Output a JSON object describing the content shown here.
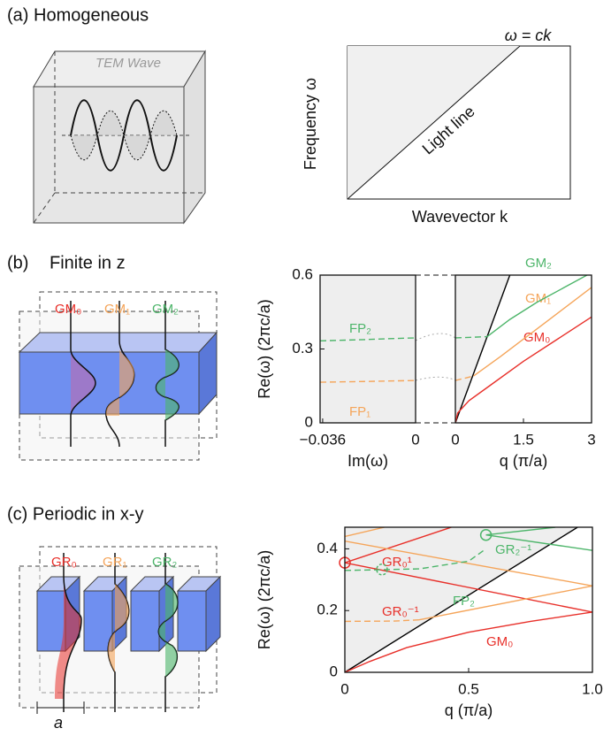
{
  "panels": [
    {
      "title": "(a) Homogeneous",
      "labels": [
        "TEM Wave"
      ]
    },
    {
      "title": "(b)",
      "subtitle": "Finite in z",
      "labels": [
        "GM₀",
        "GM₁",
        "GM₂"
      ]
    },
    {
      "title": "(c) Periodic in x-y",
      "labels": [
        "GR₀",
        "GR₁",
        "GR₂",
        "a"
      ]
    }
  ],
  "chart_data": [
    {
      "type": "line",
      "xlabel": "Wavevector  k",
      "ylabel": "Frequency ω",
      "annotations": [
        "ω = ck",
        "Light line"
      ]
    },
    {
      "type": "line",
      "ylabel": "Re(ω) (2πc/a)",
      "xlabel": "Im(ω)",
      "xlim": [
        -0.037,
        0
      ],
      "xticks": [
        {
          "value": -0.036,
          "label": "−0.036"
        },
        0
      ],
      "ylim": [
        0,
        0.6
      ],
      "yticks": [
        0,
        0.3,
        0.6
      ],
      "series": [
        {
          "name": "FP₂",
          "color": "#4db56a",
          "dashed": true,
          "x": [
            -0.037,
            -0.02,
            -0.01,
            0
          ],
          "values": [
            0.333,
            0.338,
            0.342,
            0.345
          ]
        },
        {
          "name": "FP₁",
          "color": "#f5a55a",
          "dashed": true,
          "x": [
            -0.037,
            -0.02,
            0
          ],
          "values": [
            0.165,
            0.168,
            0.172
          ]
        }
      ]
    },
    {
      "type": "line",
      "xlabel": "q (π/a)",
      "xlim": [
        0,
        3
      ],
      "xticks": [
        0,
        1.5,
        3
      ],
      "ylim": [
        0,
        0.6
      ],
      "series": [
        {
          "color": "#000000",
          "x": [
            0,
            1.2
          ],
          "values": [
            0,
            0.6
          ]
        },
        {
          "name": "GM₀",
          "color": "#e8302a",
          "x": [
            0,
            0.05,
            0.3,
            0.75,
            1.5,
            2.25,
            3
          ],
          "values": [
            0,
            0.04,
            0.09,
            0.15,
            0.25,
            0.34,
            0.43
          ]
        },
        {
          "name": "GM₁",
          "color": "#f5a55a",
          "x": [
            0.4,
            1,
            1.5,
            2,
            2.5,
            3
          ],
          "values": [
            0.19,
            0.27,
            0.34,
            0.41,
            0.48,
            0.55
          ]
        },
        {
          "name": "GM₂",
          "color": "#4db56a",
          "x": [
            0.7,
            1.2,
            1.8,
            2.4,
            3
          ],
          "values": [
            0.35,
            0.42,
            0.49,
            0.55,
            0.61
          ]
        },
        {
          "color": "#4db56a",
          "dashed": true,
          "x": [
            0,
            0.7
          ],
          "values": [
            0.345,
            0.35
          ]
        },
        {
          "color": "#f5a55a",
          "dashed": true,
          "x": [
            0,
            0.4
          ],
          "values": [
            0.172,
            0.19
          ]
        }
      ]
    },
    {
      "type": "line",
      "ylabel": "Re(ω) (2πc/a)",
      "xlabel": "q (π/a)",
      "xlim": [
        0,
        1
      ],
      "xticks": [
        0,
        0.5,
        {
          "value": 1,
          "label": "1.0"
        }
      ],
      "ylim": [
        0,
        0.47
      ],
      "yticks": [
        0,
        0.2,
        0.4
      ],
      "series": [
        {
          "color": "#000000",
          "x": [
            0,
            0.94
          ],
          "values": [
            0,
            0.47
          ]
        },
        {
          "name": "GM₀",
          "color": "#e8302a",
          "x": [
            0,
            0.1,
            0.25,
            0.5,
            0.75,
            1
          ],
          "values": [
            0,
            0.035,
            0.08,
            0.13,
            0.165,
            0.195
          ]
        },
        {
          "name": "GR₀⁻¹",
          "color": "#e8302a",
          "x": [
            0,
            1
          ],
          "values": [
            0.355,
            0.195
          ]
        },
        {
          "name": "GR₀¹",
          "color": "#e8302a",
          "x": [
            0,
            0.43
          ],
          "values": [
            0.355,
            0.47
          ]
        },
        {
          "color": "#f5a55a",
          "x": [
            0,
            1
          ],
          "values": [
            0.425,
            0.28
          ]
        },
        {
          "color": "#f5a55a",
          "x": [
            0.3,
            1
          ],
          "values": [
            0.17,
            0.28
          ]
        },
        {
          "color": "#f5a55a",
          "x": [
            0,
            0.16
          ],
          "values": [
            0.44,
            0.47
          ]
        },
        {
          "color": "#f5a55a",
          "dashed": true,
          "x": [
            0,
            0.2,
            0.3
          ],
          "values": [
            0.165,
            0.166,
            0.17
          ]
        },
        {
          "name": "FP₂",
          "color": "#4db56a",
          "dashed": true,
          "x": [
            0,
            0.3,
            0.5,
            0.57
          ],
          "values": [
            0.33,
            0.335,
            0.36,
            0.4
          ]
        },
        {
          "name": "GR₂⁻¹",
          "color": "#4db56a",
          "x": [
            0.57,
            1
          ],
          "values": [
            0.445,
            0.395
          ]
        },
        {
          "color": "#4db56a",
          "x": [
            0.57,
            0.85
          ],
          "values": [
            0.445,
            0.47
          ]
        }
      ],
      "markers": [
        {
          "x": 0,
          "y": 0.355,
          "color": "#e8302a"
        },
        {
          "x": 0.57,
          "y": 0.445,
          "color": "#4db56a"
        },
        {
          "x": 0.15,
          "y": 0.333,
          "color": "#4db56a",
          "dashed": true
        }
      ]
    }
  ]
}
